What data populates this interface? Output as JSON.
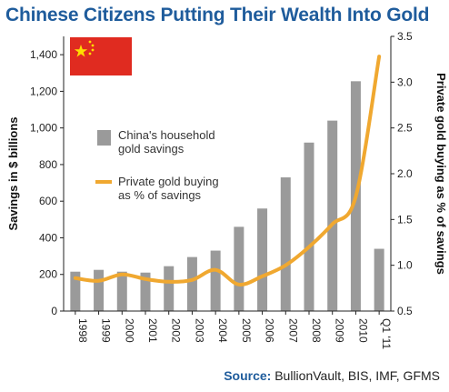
{
  "chart_data": {
    "type": "bar",
    "title": "Chinese Citizens Putting Their Wealth Into Gold",
    "categories": [
      "1998",
      "1999",
      "2000",
      "2001",
      "2002",
      "2003",
      "2004",
      "2005",
      "2006",
      "2007",
      "2008",
      "2009",
      "2010",
      "Q1 '11"
    ],
    "series": [
      {
        "name": "China's household gold savings",
        "type": "bar",
        "axis": "left",
        "color": "#9a9a9a",
        "values": [
          215,
          225,
          215,
          210,
          245,
          295,
          330,
          460,
          560,
          730,
          920,
          1040,
          1255,
          340
        ]
      },
      {
        "name": "Private gold buying as % of savings",
        "type": "line",
        "axis": "right",
        "color": "#f0a830",
        "values": [
          0.86,
          0.83,
          0.9,
          0.85,
          0.82,
          0.84,
          0.95,
          0.79,
          0.88,
          1.0,
          1.2,
          1.45,
          1.75,
          3.28
        ]
      }
    ],
    "ylabel": "Savings in $ billions",
    "ylim": [
      0,
      1500
    ],
    "yticks": [
      "0",
      "200",
      "400",
      "600",
      "800",
      "1,000",
      "1,200",
      "1,400"
    ],
    "y2label": "Private gold buying as % of savings",
    "y2lim": [
      0.5,
      3.5
    ],
    "y2ticks": [
      "0.5",
      "1.0",
      "1.5",
      "2.0",
      "2.5",
      "3.0",
      "3.5"
    ],
    "legend": {
      "position": "center-left",
      "bar_label_lines": [
        "China's household",
        "gold savings"
      ],
      "line_label_lines": [
        "Private gold buying",
        "as % of savings"
      ]
    },
    "grid": false
  },
  "source": {
    "label": "Source:",
    "text": "BullionVault, BIS, IMF, GFMS"
  },
  "flag": "china-flag"
}
